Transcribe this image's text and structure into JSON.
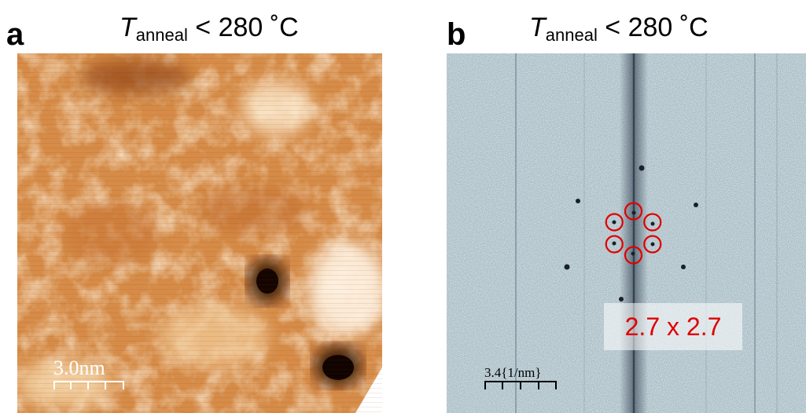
{
  "panel_a": {
    "letter": "a",
    "title_symbol": "T",
    "title_subscript": "anneal",
    "title_condition": " < 280 ˚C",
    "scale_bar_label": "3.0nm"
  },
  "panel_b": {
    "letter": "b",
    "title_symbol": "T",
    "title_subscript": "anneal",
    "title_condition": " < 280 ˚C",
    "scale_bar_label": "3.4{1/nm}",
    "lattice_label": "2.7 x 2.7",
    "highlight_color": "#e00000",
    "fft_spot_count": 6
  },
  "colors": {
    "stm_light": "#fbe6c2",
    "stm_mid": "#d58a45",
    "stm_dark": "#1f0700",
    "fft_background": "#a8bcc4",
    "fft_spot": "#18202a"
  }
}
